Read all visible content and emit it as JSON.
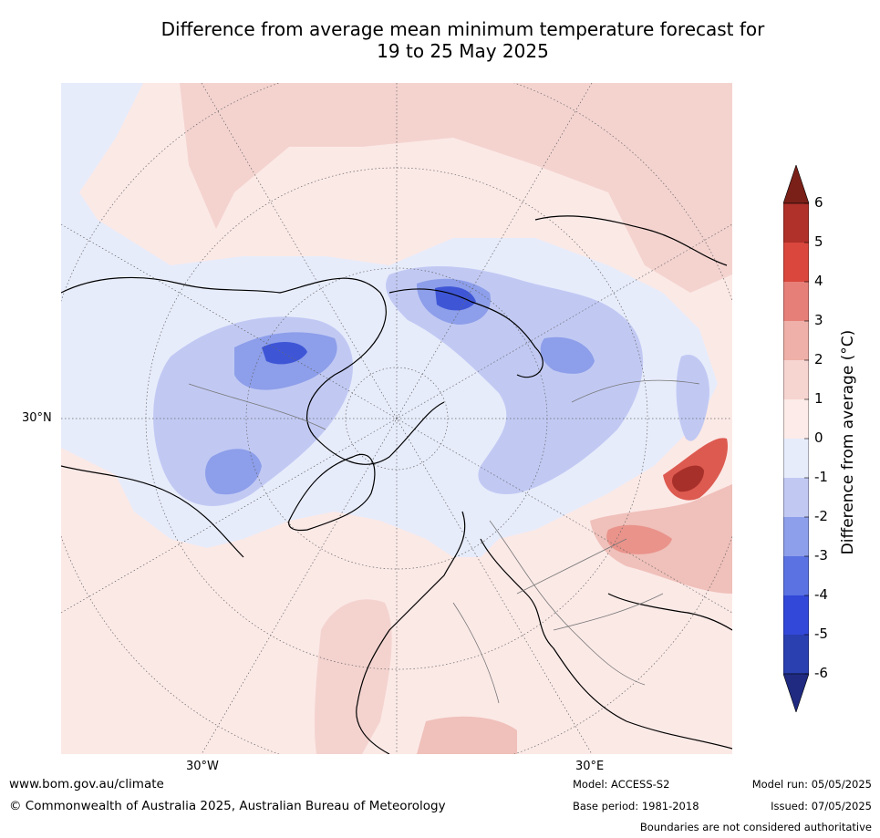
{
  "title_line1": "Difference from average mean minimum temperature forecast for",
  "title_line2": "19 to 25 May 2025",
  "map": {
    "lat_label": "30°N",
    "lon_west_label": "30°W",
    "lon_east_label": "30°E"
  },
  "colorbar": {
    "title": "Difference from average (°C)",
    "ticks": [
      "6",
      "5",
      "4",
      "3",
      "2",
      "1",
      "0",
      "-1",
      "-2",
      "-3",
      "-4",
      "-5",
      "-6"
    ],
    "colors": [
      "#7b2018",
      "#b0302a",
      "#d9473d",
      "#e67f78",
      "#eeb0a8",
      "#f6d4d0",
      "#fcebe8",
      "#e7ecfb",
      "#c1c9f3",
      "#8d9eea",
      "#5a72e2",
      "#3248d8",
      "#2a3fb0",
      "#1f2a80"
    ]
  },
  "footer": {
    "url": "www.bom.gov.au/climate",
    "copyright": "© Commonwealth of Australia 2025, Australian Bureau of Meteorology",
    "model": "Model: ACCESS-S2",
    "base_period": "Base period: 1981-2018",
    "model_run": "Model run: 05/05/2025",
    "issued": "Issued: 07/05/2025",
    "disclaimer": "Boundaries are not considered authoritative"
  }
}
